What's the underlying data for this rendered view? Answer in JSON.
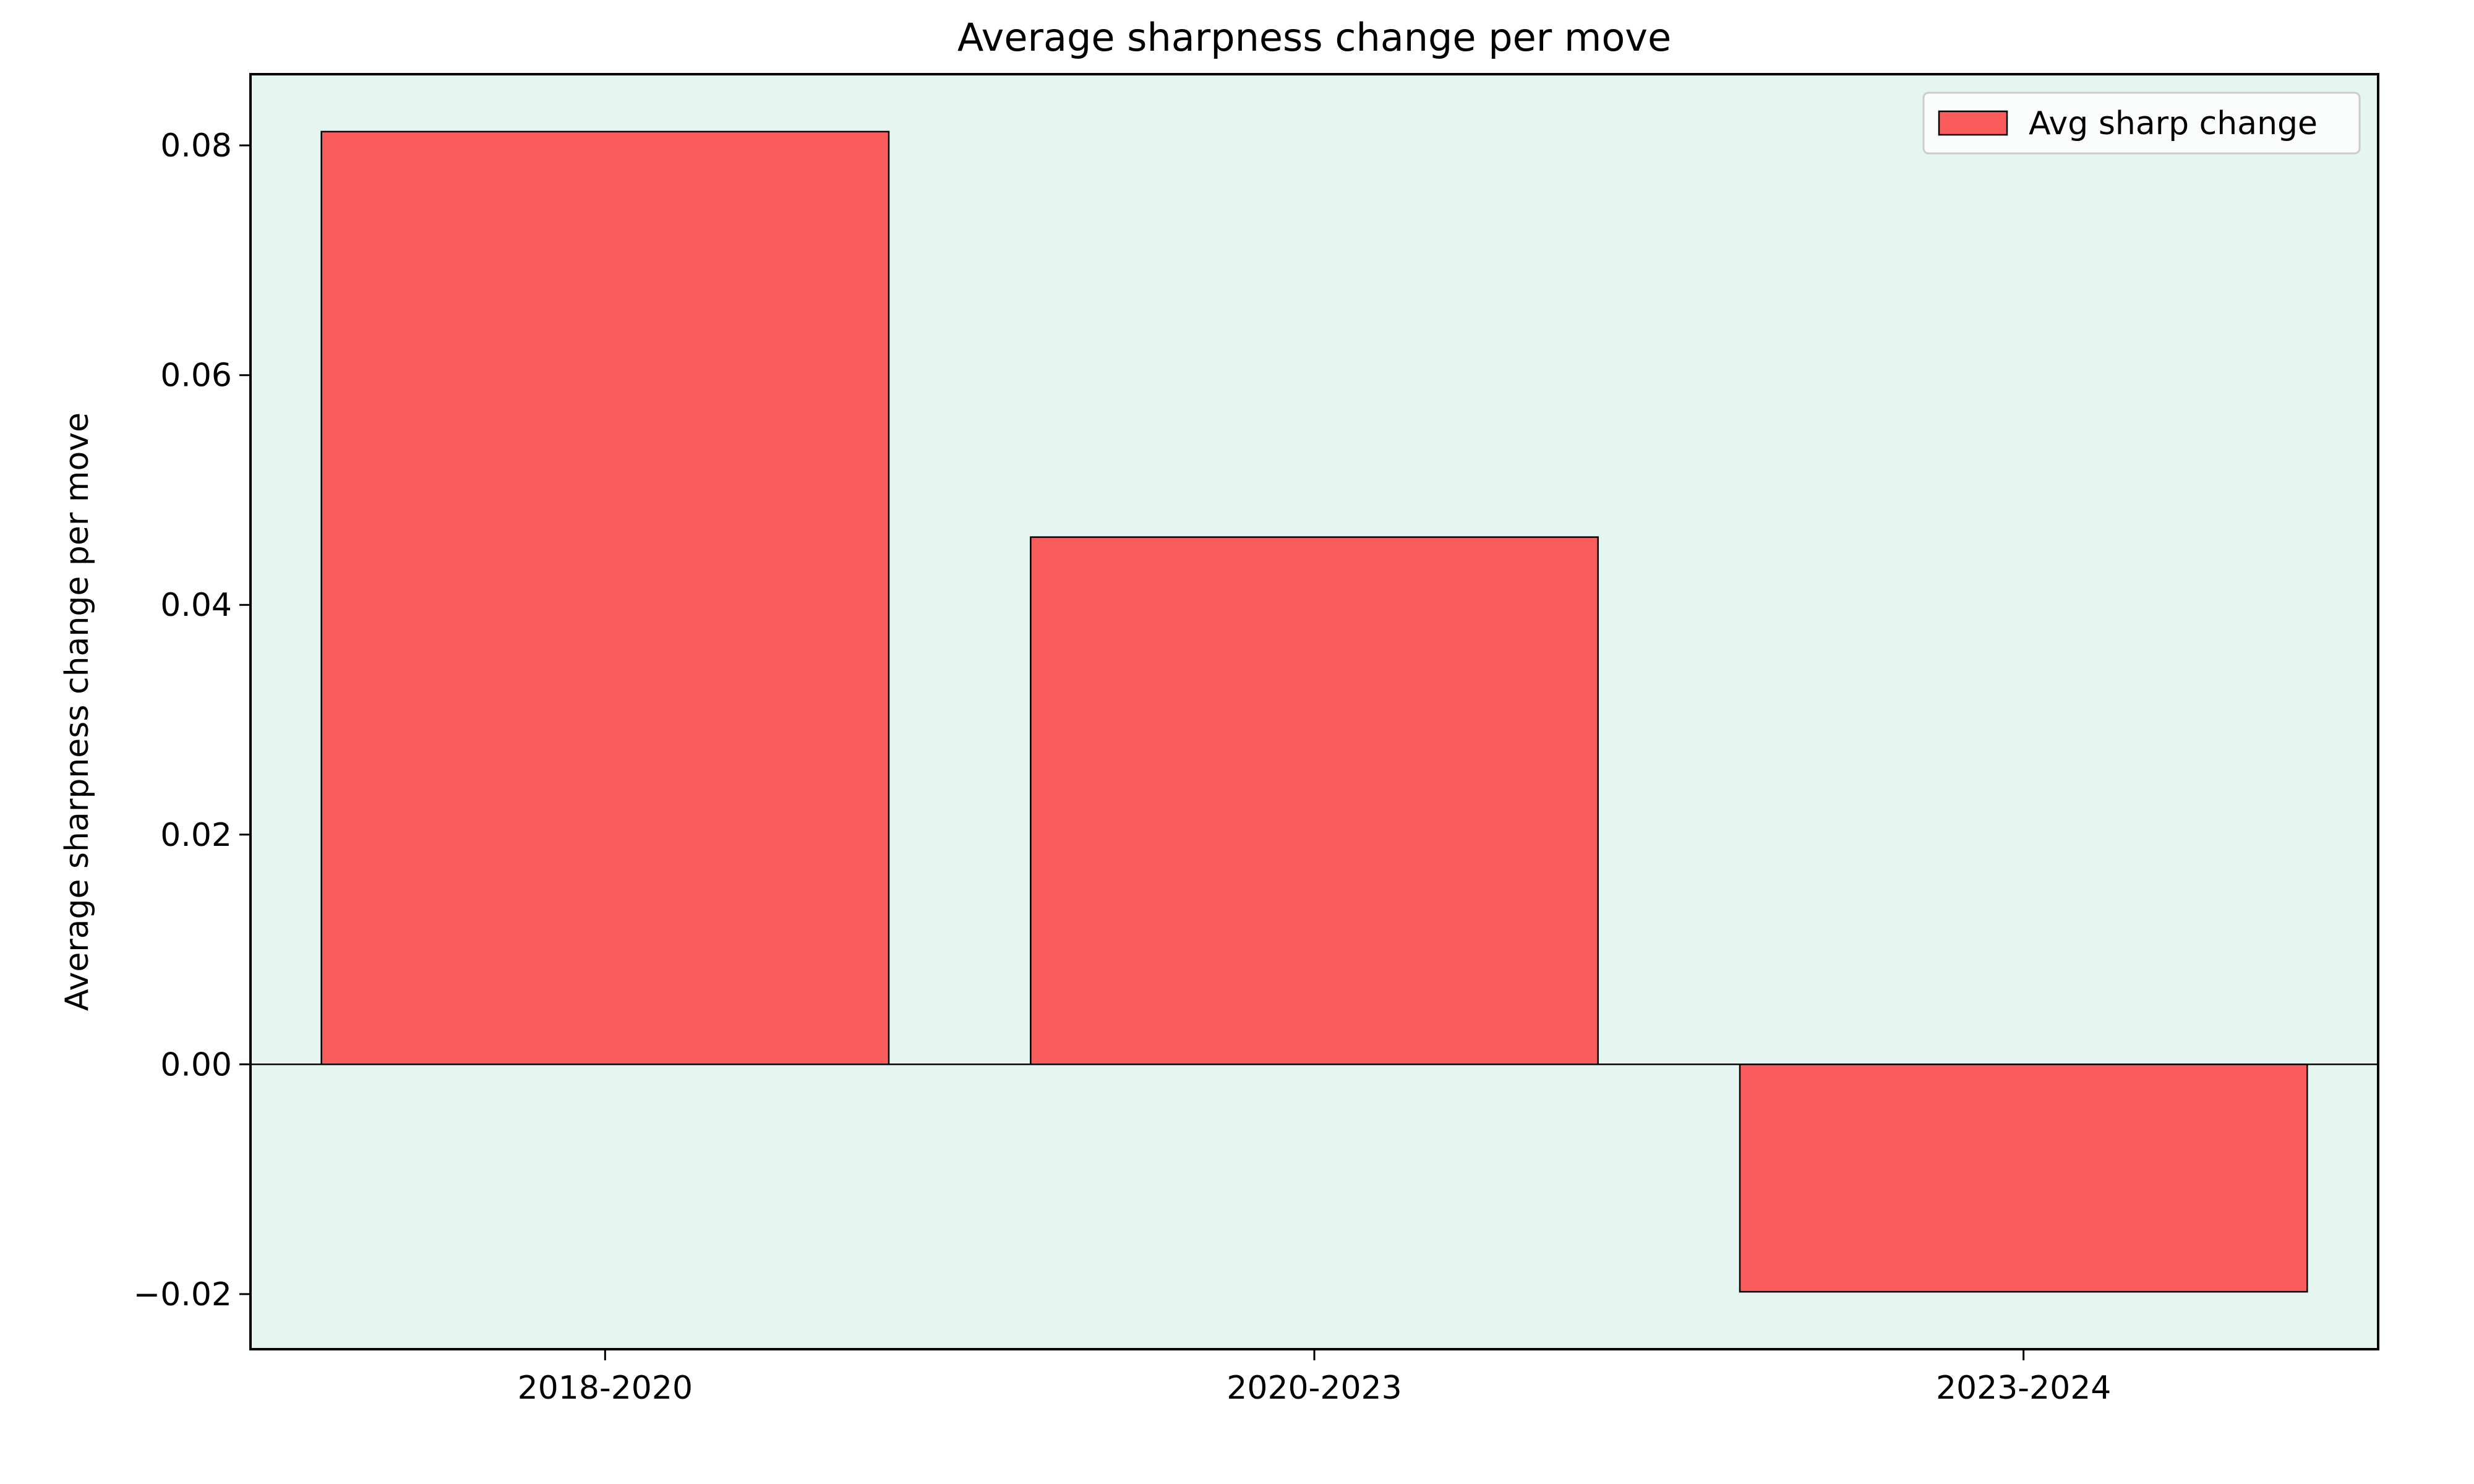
{
  "chart_data": {
    "type": "bar",
    "title": "Average sharpness change per move",
    "xlabel": "",
    "ylabel": "Average sharpness change per move",
    "categories": [
      "2018-2020",
      "2020-2023",
      "2023-2024"
    ],
    "series": [
      {
        "name": "Avg sharp change",
        "values": [
          0.0812,
          0.0459,
          -0.0198
        ]
      }
    ],
    "ylim": [
      -0.0248,
      0.0862
    ],
    "yticks": [
      -0.02,
      0.0,
      0.02,
      0.04,
      0.06,
      0.08
    ],
    "ytick_labels": [
      "−0.02",
      "0.00",
      "0.02",
      "0.04",
      "0.06",
      "0.08"
    ],
    "grid": false,
    "legend_position": "top-right",
    "zero_line": true,
    "colors": {
      "bar_fill": "#fa5c5c",
      "bar_edge": "#000000",
      "plot_background": "#e5f5f0",
      "axes": "#000000"
    }
  }
}
